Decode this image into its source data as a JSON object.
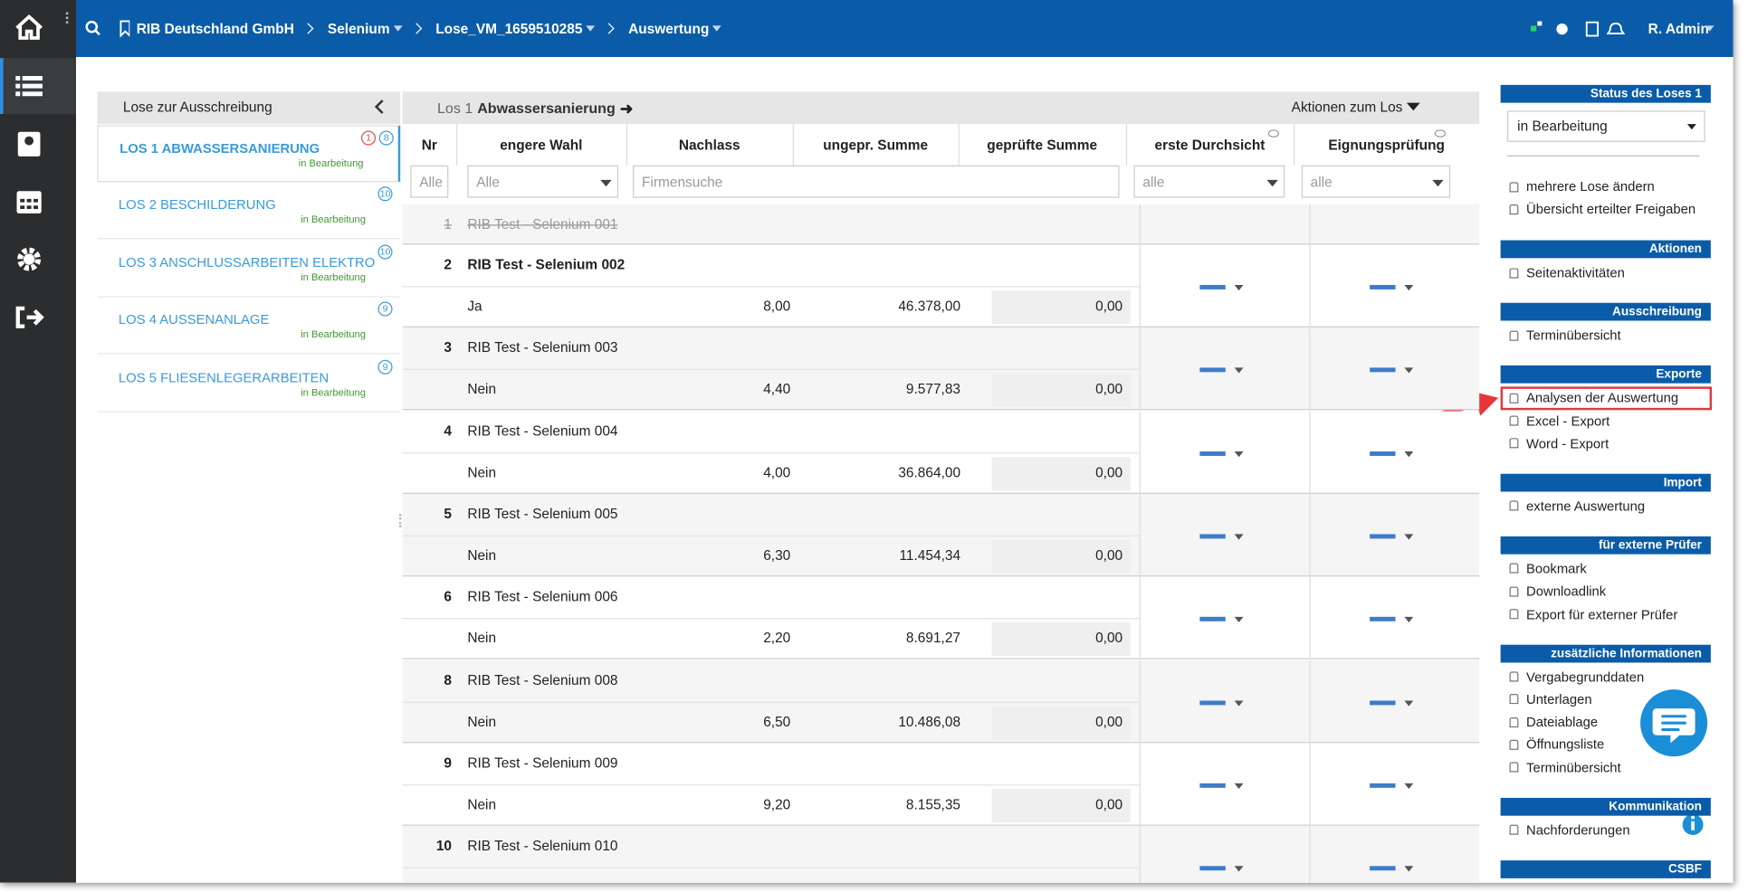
{
  "topbar": {
    "breadcrumb": [
      "RIB Deutschland GmbH",
      "Selenium",
      "Lose_VM_1659510285",
      "Auswertung"
    ],
    "user": "R. Admin"
  },
  "lots_panel": {
    "title": "Lose zur Ausschreibung",
    "lots": [
      {
        "name": "LOS 1 ABWASSERSANIERUNG",
        "status": "in Bearbeitung",
        "badges": [
          "1",
          "8"
        ]
      },
      {
        "name": "LOS 2 BESCHILDERUNG",
        "status": "in Bearbeitung",
        "badges": [
          "10"
        ]
      },
      {
        "name": "LOS 3 ANSCHLUSSARBEITEN ELEKTRO",
        "status": "in Bearbeitung",
        "badges": [
          "10"
        ]
      },
      {
        "name": "LOS 4 AUSSENANLAGE",
        "status": "in Bearbeitung",
        "badges": [
          "9"
        ]
      },
      {
        "name": "LOS 5 FLIESENLEGERARBEITEN",
        "status": "in Bearbeitung",
        "badges": [
          "9"
        ]
      }
    ]
  },
  "main": {
    "prefix": "Los 1",
    "title": "Abwassersanierung",
    "actions": "Aktionen zum Los",
    "columns": [
      "Nr",
      "engere Wahl",
      "Nachlass",
      "ungepr. Summe",
      "geprüfte Summe",
      "erste Durchsicht",
      "Eignungsprüfung"
    ],
    "filters": [
      "Alle",
      "Alle",
      "Firmensuche",
      "alle",
      "alle"
    ],
    "rows": [
      {
        "nr": "1",
        "name": "RIB Test - Selenium 001"
      },
      {
        "nr": "2",
        "name": "RIB Test - Selenium 002",
        "choice": "Ja",
        "discount": "8,00",
        "unchecked_sum": "46.378,00",
        "checked_sum": "0,00"
      },
      {
        "nr": "3",
        "name": "RIB Test - Selenium 003",
        "choice": "Nein",
        "discount": "4,40",
        "unchecked_sum": "9.577,83",
        "checked_sum": "0,00"
      },
      {
        "nr": "4",
        "name": "RIB Test - Selenium 004",
        "choice": "Nein",
        "discount": "4,00",
        "unchecked_sum": "36.864,00",
        "checked_sum": "0,00"
      },
      {
        "nr": "5",
        "name": "RIB Test - Selenium 005",
        "choice": "Nein",
        "discount": "6,30",
        "unchecked_sum": "11.454,34",
        "checked_sum": "0,00"
      },
      {
        "nr": "6",
        "name": "RIB Test - Selenium 006",
        "choice": "Nein",
        "discount": "2,20",
        "unchecked_sum": "8.691,27",
        "checked_sum": "0,00"
      },
      {
        "nr": "8",
        "name": "RIB Test - Selenium 008",
        "choice": "Nein",
        "discount": "6,50",
        "unchecked_sum": "10.486,08",
        "checked_sum": "0,00"
      },
      {
        "nr": "9",
        "name": "RIB Test - Selenium 009",
        "choice": "Nein",
        "discount": "9,20",
        "unchecked_sum": "8.155,35",
        "checked_sum": "0,00"
      },
      {
        "nr": "10",
        "name": "RIB Test - Selenium 010"
      }
    ]
  },
  "sidebar": {
    "status": {
      "title": "Status des Loses 1",
      "value": "in Bearbeitung",
      "links": [
        "mehrere Lose ändern",
        "Übersicht erteilter Freigaben"
      ]
    },
    "sections": [
      {
        "title": "Aktionen",
        "links": [
          "Seitenaktivitäten"
        ]
      },
      {
        "title": "Ausschreibung",
        "links": [
          "Terminübersicht"
        ]
      },
      {
        "title": "Exporte",
        "links": [
          "Analysen der Auswertung",
          "Excel - Export",
          "Word - Export"
        ]
      },
      {
        "title": "Import",
        "links": [
          "externe Auswertung"
        ]
      },
      {
        "title": "für externe Prüfer",
        "links": [
          "Bookmark",
          "Downloadlink",
          "Export für externer Prüfer"
        ]
      },
      {
        "title": "zusätzliche Informationen",
        "links": [
          "Vergabegrunddaten",
          "Unterlagen",
          "Dateiablage",
          "Öffnungsliste",
          "Terminübersicht"
        ]
      },
      {
        "title": "Kommunikation",
        "links": [
          "Nachforderungen"
        ]
      },
      {
        "title": "CSBF",
        "links": []
      }
    ]
  }
}
